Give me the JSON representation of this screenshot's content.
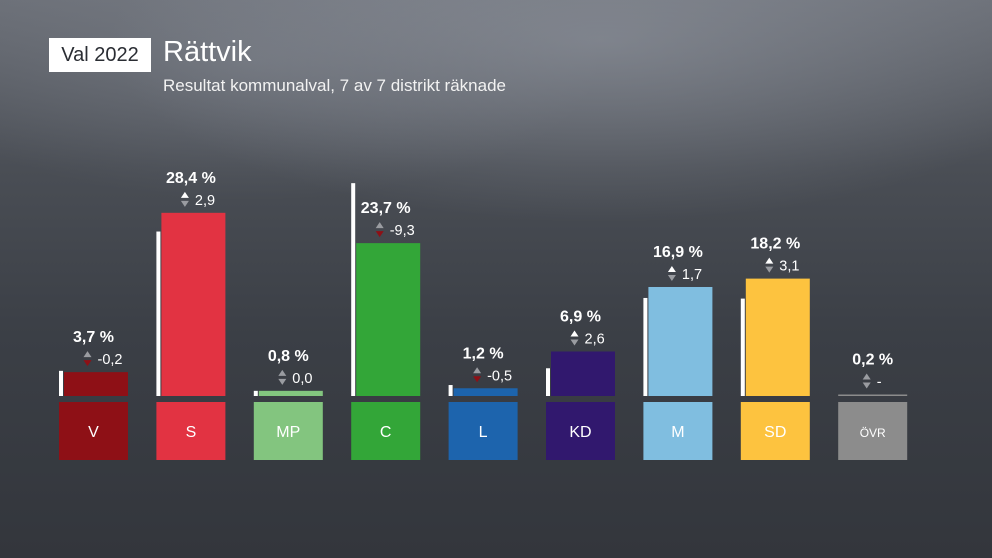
{
  "header": {
    "badge": "Val 2022",
    "title": "Rättvik",
    "subtitle": "Resultat kommunalval, 7 av 7 distrikt räknade"
  },
  "chart_data": {
    "type": "bar",
    "categories": [
      "V",
      "S",
      "MP",
      "C",
      "L",
      "KD",
      "M",
      "SD",
      "ÖVR"
    ],
    "values": [
      3.7,
      28.4,
      0.8,
      23.7,
      1.2,
      6.9,
      16.9,
      18.2,
      0.2
    ],
    "value_labels": [
      "3,7 %",
      "28,4 %",
      "0,8 %",
      "23,7 %",
      "1,2 %",
      "6,9 %",
      "16,9 %",
      "18,2 %",
      "0,2 %"
    ],
    "previous_values": [
      3.9,
      25.5,
      0.8,
      33.0,
      1.7,
      4.3,
      15.2,
      15.1,
      null
    ],
    "changes": [
      -0.2,
      2.9,
      0.0,
      -9.3,
      -0.5,
      2.6,
      1.7,
      3.1,
      null
    ],
    "change_labels": [
      "-0,2",
      "2,9",
      "0,0",
      "-9,3",
      "-0,5",
      "2,6",
      "1,7",
      "3,1",
      "-"
    ],
    "colors": [
      "#8e1016",
      "#e23342",
      "#83c57f",
      "#33a638",
      "#1d64ad",
      "#31186e",
      "#80bee0",
      "#fdc33f",
      "#8c8c8c"
    ],
    "previous_color": "#ffffff",
    "up_color": "#ffffff",
    "down_color": "#8e1016"
  }
}
